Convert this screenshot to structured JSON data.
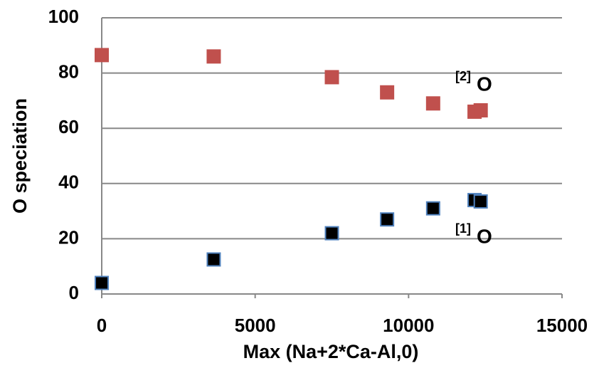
{
  "chart_data": {
    "type": "scatter",
    "x_label": "Max (Na+2*Ca-Al,0)",
    "y_label": "O speciation",
    "x": [
      0,
      3650,
      7500,
      9300,
      10800,
      12150,
      12350
    ],
    "series": [
      {
        "color": "#c0504d",
        "values": [
          86.5,
          86,
          78.5,
          73,
          69,
          66,
          66.5
        ]
      },
      {
        "color": "#000000",
        "values": [
          4,
          12.5,
          22,
          27,
          31,
          34,
          33.5
        ]
      }
    ],
    "annotations": [
      {
        "sup": "[2]",
        "text": "O"
      },
      {
        "sup": "[1]",
        "text": "O"
      }
    ],
    "xlim": [
      0,
      15000
    ],
    "xticks": [
      0,
      5000,
      10000,
      15000
    ],
    "ylim": [
      0,
      100
    ],
    "yticks": [
      0,
      20,
      40,
      60,
      80,
      100
    ],
    "grid": true
  }
}
